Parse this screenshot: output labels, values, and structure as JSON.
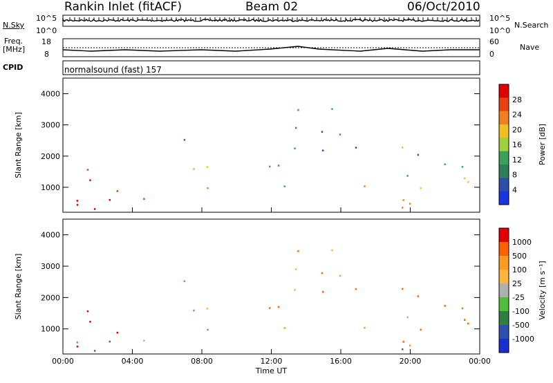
{
  "header": {
    "station": "Rankin Inlet (fitACF)",
    "beam": "Beam 02",
    "date": "06/Oct/2010"
  },
  "nsky_panel": {
    "left_label": "N.Sky",
    "left_ticks": [
      "10^5",
      "10^0"
    ],
    "right_label": "N.Search",
    "right_ticks": [
      "10^5",
      "10^0"
    ]
  },
  "freq_panel": {
    "left_label_line1": "Freq.",
    "left_label_line2": "[MHz]",
    "left_ticks": [
      "18",
      "8"
    ],
    "right_label": "Nave",
    "right_ticks": [
      "60",
      "0"
    ]
  },
  "cpid_panel": {
    "label": "CPID",
    "text": "normalsound (fast) 157"
  },
  "colors": {
    "power_scale": [
      "#1a35e6",
      "#2e4fa8",
      "#2f7f5a",
      "#3aa05a",
      "#9fd23a",
      "#f0c020",
      "#f08020",
      "#e84010",
      "#e00000"
    ],
    "velocity_scale": [
      "#e00000",
      "#ff6000",
      "#ff9a20",
      "#ffb43c",
      "#b0b0b0",
      "#4fbf3a",
      "#2e7f40",
      "#2f4fb0",
      "#1a2fd0"
    ]
  },
  "chart_data": [
    {
      "type": "heatmap",
      "title": "Power",
      "xlabel": "",
      "ylabel": "Slant Range [km]",
      "ylim": [
        200,
        4500
      ],
      "xlim_hours": [
        0,
        24
      ],
      "y_ticks": [
        1000,
        2000,
        3000,
        4000
      ],
      "colorbar": {
        "label": "Power [dB]",
        "ticks": [
          "28",
          "24",
          "20",
          "16",
          "12",
          "8",
          "4"
        ],
        "range": [
          0,
          30
        ]
      }
    },
    {
      "type": "heatmap",
      "title": "Velocity",
      "xlabel": "Time UT",
      "ylabel": "Slant Range [km]",
      "ylim": [
        200,
        4500
      ],
      "xlim_hours": [
        0,
        24
      ],
      "x_ticks": [
        "00:00",
        "04:00",
        "08:00",
        "12:00",
        "16:00",
        "20:00",
        "00:00"
      ],
      "y_ticks": [
        1000,
        2000,
        3000,
        4000
      ],
      "colorbar": {
        "label": "Velocity [m s⁻¹]",
        "ticks": [
          "1000",
          "500",
          "100",
          "25",
          "-25",
          "-100",
          "-500",
          "-1000"
        ],
        "range": [
          -1000,
          1000
        ]
      }
    }
  ]
}
